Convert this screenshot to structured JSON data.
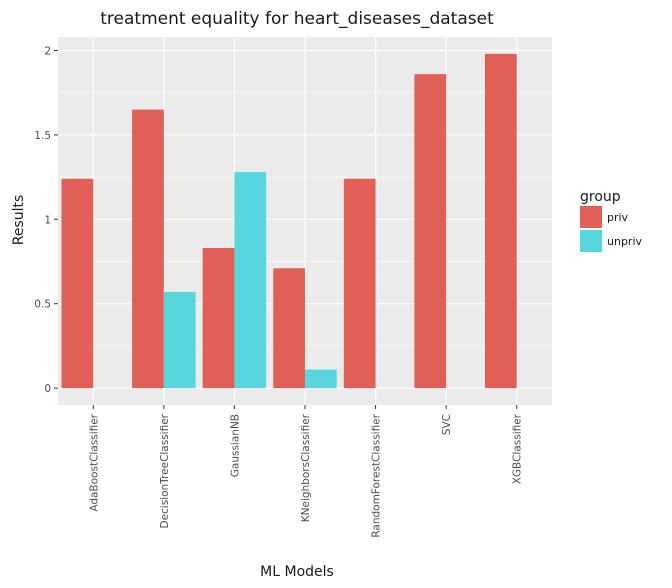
{
  "chart_data": {
    "type": "bar",
    "title": "treatment equality for heart_diseases_dataset",
    "xlabel": "ML Models",
    "ylabel": "Results",
    "categories": [
      "AdaBoostClassifier",
      "DecisionTreeClassifier",
      "GaussianNB",
      "KNeighborsClassifier",
      "RandomForestClassifier",
      "SVC",
      "XGBClassifier"
    ],
    "series": [
      {
        "name": "priv",
        "color": "#E05F57",
        "values": [
          1.24,
          1.65,
          0.83,
          0.71,
          1.24,
          1.86,
          1.98
        ]
      },
      {
        "name": "unpriv",
        "color": "#57D6DE",
        "values": [
          0,
          0.57,
          1.28,
          0.11,
          0,
          0,
          0
        ]
      }
    ],
    "yticks": [
      0,
      0.5,
      1,
      1.5,
      2
    ],
    "ytick_labels": [
      "0",
      "0.5",
      "1",
      "1.5",
      "2"
    ],
    "ylim": [
      -0.1,
      2.08
    ],
    "legend_title": "group",
    "legend_position": "right",
    "grid": true,
    "panel_color": "#EBEBEB"
  }
}
